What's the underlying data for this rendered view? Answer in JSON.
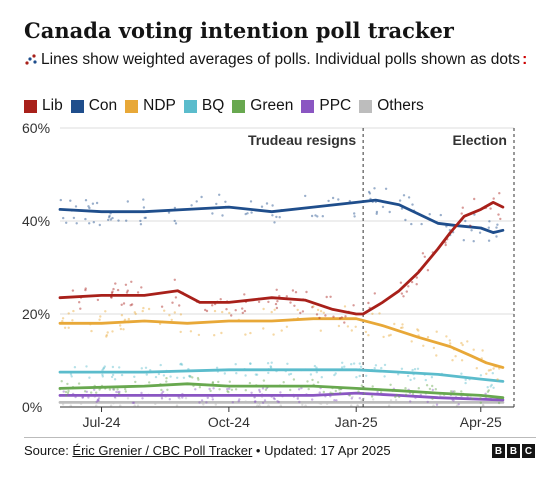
{
  "title": "Canada voting intention poll tracker",
  "subtitle": "Lines show weighted averages of polls. Individual polls shown as dots",
  "subtitle_marker": ":",
  "source": {
    "prefix": "Source: ",
    "link": "Éric Grenier / CBC Poll Tracker",
    "suffix": " • Updated: 17 Apr 2025"
  },
  "logo": [
    "B",
    "B",
    "C"
  ],
  "chart_data": {
    "type": "line",
    "title": "Canada voting intention poll tracker",
    "x_range": [
      "2024-06-01",
      "2025-04-25"
    ],
    "ylim": [
      0,
      60
    ],
    "y_ticks": [
      0,
      20,
      40,
      60
    ],
    "y_tick_labels": [
      "0%",
      "20%",
      "40%",
      "60%"
    ],
    "x_ticks": [
      {
        "date": "2024-07-01",
        "label": "Jul-24"
      },
      {
        "date": "2024-10-01",
        "label": "Oct-24"
      },
      {
        "date": "2025-01-01",
        "label": "Jan-25"
      },
      {
        "date": "2025-04-01",
        "label": "Apr-25"
      }
    ],
    "grid": true,
    "legend_placement": "top",
    "annotations": [
      {
        "date": "2025-01-06",
        "label": "Trudeau resigns",
        "align": "right"
      },
      {
        "date": "2025-04-28",
        "label": "Election",
        "align": "right"
      }
    ],
    "series": [
      {
        "name": "Lib",
        "color": "#a8201a",
        "points": [
          [
            "2024-06-01",
            23.5
          ],
          [
            "2024-07-01",
            24
          ],
          [
            "2024-08-01",
            24
          ],
          [
            "2024-08-25",
            25
          ],
          [
            "2024-09-10",
            22.5
          ],
          [
            "2024-10-01",
            22.5
          ],
          [
            "2024-11-01",
            23.5
          ],
          [
            "2024-11-25",
            23
          ],
          [
            "2024-12-15",
            21
          ],
          [
            "2025-01-01",
            20
          ],
          [
            "2025-01-06",
            20
          ],
          [
            "2025-01-20",
            22.5
          ],
          [
            "2025-02-01",
            25
          ],
          [
            "2025-02-15",
            29
          ],
          [
            "2025-03-01",
            34
          ],
          [
            "2025-03-10",
            37.5
          ],
          [
            "2025-03-20",
            41
          ],
          [
            "2025-04-01",
            42.5
          ],
          [
            "2025-04-10",
            44
          ],
          [
            "2025-04-17",
            43
          ]
        ]
      },
      {
        "name": "Con",
        "color": "#1f4e8c",
        "points": [
          [
            "2024-06-01",
            42.5
          ],
          [
            "2024-07-01",
            42
          ],
          [
            "2024-08-01",
            42
          ],
          [
            "2024-09-01",
            42.5
          ],
          [
            "2024-10-01",
            43
          ],
          [
            "2024-11-01",
            42
          ],
          [
            "2024-12-01",
            43
          ],
          [
            "2025-01-01",
            44
          ],
          [
            "2025-01-15",
            44.5
          ],
          [
            "2025-02-01",
            43.5
          ],
          [
            "2025-02-15",
            41.5
          ],
          [
            "2025-03-01",
            39.5
          ],
          [
            "2025-03-15",
            39
          ],
          [
            "2025-04-01",
            38.5
          ],
          [
            "2025-04-10",
            37.5
          ],
          [
            "2025-04-17",
            38
          ]
        ]
      },
      {
        "name": "NDP",
        "color": "#e8a838",
        "points": [
          [
            "2024-06-01",
            18
          ],
          [
            "2024-07-01",
            18
          ],
          [
            "2024-08-01",
            18.5
          ],
          [
            "2024-09-01",
            18
          ],
          [
            "2024-10-01",
            18.5
          ],
          [
            "2024-11-01",
            18.5
          ],
          [
            "2024-12-01",
            19
          ],
          [
            "2025-01-01",
            19
          ],
          [
            "2025-01-20",
            17.5
          ],
          [
            "2025-02-15",
            15
          ],
          [
            "2025-03-10",
            13
          ],
          [
            "2025-03-25",
            11
          ],
          [
            "2025-04-05",
            9.5
          ],
          [
            "2025-04-17",
            8.5
          ]
        ]
      },
      {
        "name": "BQ",
        "color": "#5bbccc",
        "points": [
          [
            "2024-06-01",
            7.5
          ],
          [
            "2024-08-01",
            7.5
          ],
          [
            "2024-10-01",
            8
          ],
          [
            "2024-12-01",
            8
          ],
          [
            "2025-01-01",
            8
          ],
          [
            "2025-02-01",
            7.5
          ],
          [
            "2025-03-01",
            7
          ],
          [
            "2025-04-01",
            6
          ],
          [
            "2025-04-17",
            5.5
          ]
        ]
      },
      {
        "name": "Green",
        "color": "#68a84f",
        "points": [
          [
            "2024-06-01",
            4
          ],
          [
            "2024-08-01",
            4.5
          ],
          [
            "2024-09-01",
            5
          ],
          [
            "2024-10-01",
            4.5
          ],
          [
            "2024-12-01",
            4.5
          ],
          [
            "2025-01-01",
            4
          ],
          [
            "2025-02-01",
            3.5
          ],
          [
            "2025-03-01",
            3
          ],
          [
            "2025-04-01",
            2.5
          ],
          [
            "2025-04-17",
            2
          ]
        ]
      },
      {
        "name": "PPC",
        "color": "#8a56c2",
        "points": [
          [
            "2024-06-01",
            2.5
          ],
          [
            "2024-08-01",
            2.5
          ],
          [
            "2024-10-01",
            2.5
          ],
          [
            "2024-12-01",
            2.5
          ],
          [
            "2025-01-01",
            3
          ],
          [
            "2025-02-01",
            2.5
          ],
          [
            "2025-03-01",
            2
          ],
          [
            "2025-04-17",
            1.5
          ]
        ]
      },
      {
        "name": "Others",
        "color": "#bdbdbd",
        "points": [
          [
            "2024-06-01",
            1
          ],
          [
            "2024-10-01",
            1
          ],
          [
            "2025-01-01",
            1
          ],
          [
            "2025-04-17",
            1
          ]
        ]
      }
    ]
  }
}
